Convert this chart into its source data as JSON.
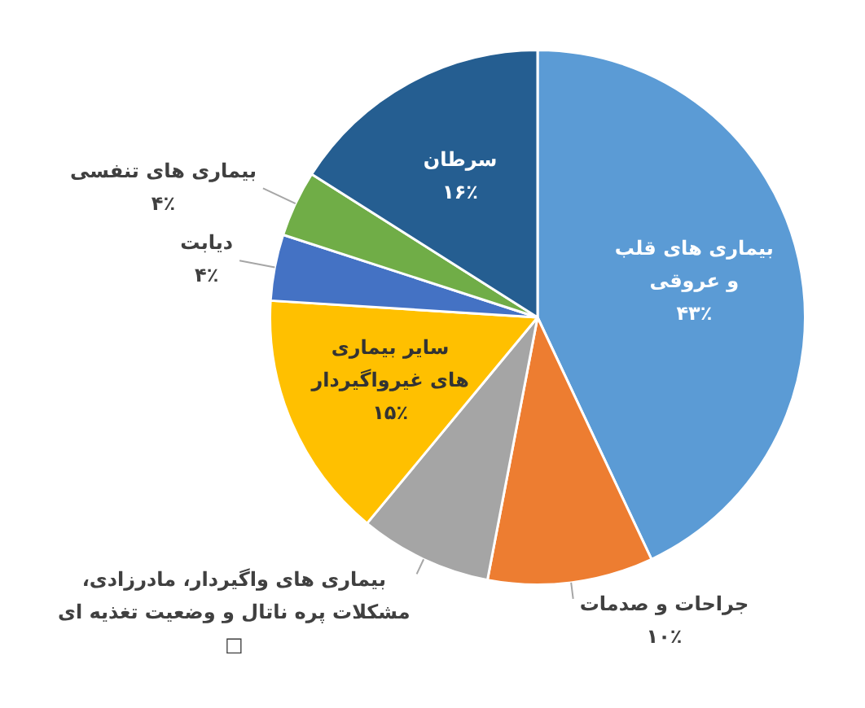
{
  "chart_data": {
    "type": "pie",
    "categories": [
      "بیماری های قلب و عروقی",
      "جراحات و صدمات",
      "بیماری های واگیردار، مادرزادی، مشکلات پره ناتال و وضعیت تغذیه ای",
      "سایر بیماری های غیرواگیردار",
      "دیابت",
      "بیماری های تنفسی",
      "سرطان"
    ],
    "values": [
      43,
      10,
      8,
      15,
      4,
      4,
      16
    ],
    "value_labels": [
      "۴۳٪",
      "۱۰٪",
      "□",
      "۱۵٪",
      "۴٪",
      "۴٪",
      "۱۶٪"
    ],
    "colors": [
      "#5b9bd5",
      "#ed7d31",
      "#a5a5a5",
      "#ffc000",
      "#4472c4",
      "#70ad47",
      "#255e91"
    ],
    "legend": false
  }
}
